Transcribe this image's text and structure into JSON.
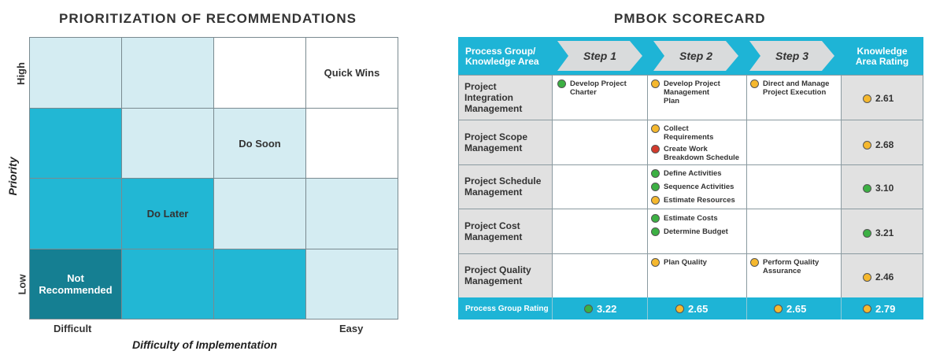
{
  "matrix": {
    "title": "PRIORITIZATION OF RECOMMENDATIONS",
    "y_axis_title": "Priority",
    "x_axis_title": "Difficulty of Implementation",
    "y_high": "High",
    "y_low": "Low",
    "x_left": "Difficult",
    "x_right": "Easy",
    "labels": {
      "quick_wins": "Quick Wins",
      "do_soon": "Do Soon",
      "do_later": "Do Later",
      "not_recommended_1": "Not",
      "not_recommended_2": "Recommended"
    },
    "colors": {
      "light": "#d4ecf2",
      "white": "#ffffff",
      "mid": "#22b7d4",
      "dark": "#157f92"
    }
  },
  "scorecard": {
    "title": "PMBOK SCORECARD",
    "header": {
      "group_line1": "Process Group/",
      "group_line2": "Knowledge Area",
      "step1": "Step 1",
      "step2": "Step 2",
      "step3": "Step 3",
      "rating_line1": "Knowledge",
      "rating_line2": "Area Rating"
    },
    "rows": [
      {
        "name1": "Project",
        "name2": "Integration",
        "name3": "Management",
        "s1": [
          {
            "l1": "Develop Project",
            "l2": "Charter",
            "status": "green"
          }
        ],
        "s2": [
          {
            "l1": "Develop Project",
            "l2": "Management",
            "l3": "Plan",
            "status": "yellow"
          }
        ],
        "s3": [
          {
            "l1": "Direct and Manage",
            "l2": "Project Execution",
            "status": "yellow"
          }
        ],
        "rating": "2.61",
        "rating_status": "yellow"
      },
      {
        "name1": "Project Scope",
        "name2": "Management",
        "s2": [
          {
            "l1": "Collect",
            "l2": "Requirements",
            "status": "yellow"
          },
          {
            "l1": "Create Work",
            "l2": "Breakdown Schedule",
            "status": "red"
          }
        ],
        "rating": "2.68",
        "rating_status": "yellow"
      },
      {
        "name1": "Project Schedule",
        "name2": "Management",
        "s2": [
          {
            "l1": "Define Activities",
            "status": "green"
          },
          {
            "l1": "Sequence Activities",
            "status": "green"
          },
          {
            "l1": "Estimate Resources",
            "status": "yellow"
          }
        ],
        "rating": "3.10",
        "rating_status": "green"
      },
      {
        "name1": "Project Cost",
        "name2": "Management",
        "s2": [
          {
            "l1": "Estimate Costs",
            "status": "green"
          },
          {
            "l1": "Determine Budget",
            "status": "green"
          }
        ],
        "rating": "3.21",
        "rating_status": "green"
      },
      {
        "name1": "Project Quality",
        "name2": "Management",
        "s2": [
          {
            "l1": "Plan Quality",
            "status": "yellow"
          }
        ],
        "s3": [
          {
            "l1": "Perform Quality",
            "l2": "Assurance",
            "status": "yellow"
          }
        ],
        "rating": "2.46",
        "rating_status": "yellow"
      }
    ],
    "footer": {
      "label": "Process Group Rating",
      "step1": "3.22",
      "step1_status": "green",
      "step2": "2.65",
      "step2_status": "yellow",
      "step3": "2.65",
      "step3_status": "yellow",
      "overall": "2.79",
      "overall_status": "yellow"
    },
    "colors": {
      "accent": "#1eb4d6",
      "grey": "#e1e1e1",
      "green": "#3cb043",
      "yellow": "#f5b82e",
      "red": "#d33a2c"
    }
  }
}
